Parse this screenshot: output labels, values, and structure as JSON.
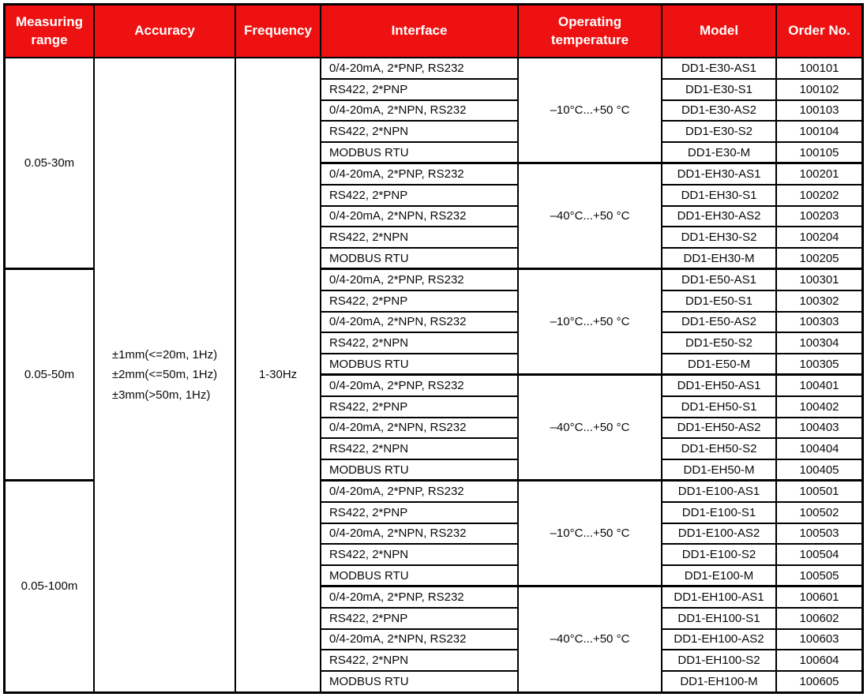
{
  "table": {
    "colors": {
      "header_bg": "#ee1111",
      "header_text": "#ffffff",
      "border": "#000000"
    },
    "headers": [
      "Measuring range",
      "Accuracy",
      "Frequency",
      "Interface",
      "Operating temperature",
      "Model",
      "Order No."
    ],
    "measuring_ranges": [
      {
        "label": "0.05-30m",
        "row_span": 10
      },
      {
        "label": "0.05-50m",
        "row_span": 10
      },
      {
        "label": "0.05-100m",
        "row_span": 10
      }
    ],
    "accuracy_lines": [
      "±1mm(<=20m, 1Hz)",
      "±2mm(<=50m, 1Hz)",
      "±3mm(>50m, 1Hz)"
    ],
    "frequency": "1-30Hz",
    "groups": [
      {
        "operating_temperature": "–10°C...+50 °C",
        "rows": [
          {
            "interface": "0/4-20mA, 2*PNP, RS232",
            "model": "DD1-E30-AS1",
            "order_no": "100101"
          },
          {
            "interface": "RS422, 2*PNP",
            "model": "DD1-E30-S1",
            "order_no": "100102"
          },
          {
            "interface": "0/4-20mA, 2*NPN, RS232",
            "model": "DD1-E30-AS2",
            "order_no": "100103"
          },
          {
            "interface": "RS422, 2*NPN",
            "model": "DD1-E30-S2",
            "order_no": "100104"
          },
          {
            "interface": "MODBUS RTU",
            "model": "DD1-E30-M",
            "order_no": "100105"
          }
        ]
      },
      {
        "operating_temperature": "–40°C...+50 °C",
        "rows": [
          {
            "interface": "0/4-20mA, 2*PNP, RS232",
            "model": "DD1-EH30-AS1",
            "order_no": "100201"
          },
          {
            "interface": "RS422, 2*PNP",
            "model": "DD1-EH30-S1",
            "order_no": "100202"
          },
          {
            "interface": "0/4-20mA, 2*NPN, RS232",
            "model": "DD1-EH30-AS2",
            "order_no": "100203"
          },
          {
            "interface": "RS422, 2*NPN",
            "model": "DD1-EH30-S2",
            "order_no": "100204"
          },
          {
            "interface": "MODBUS RTU",
            "model": "DD1-EH30-M",
            "order_no": "100205"
          }
        ]
      },
      {
        "operating_temperature": "–10°C...+50 °C",
        "rows": [
          {
            "interface": "0/4-20mA, 2*PNP, RS232",
            "model": "DD1-E50-AS1",
            "order_no": "100301"
          },
          {
            "interface": "RS422, 2*PNP",
            "model": "DD1-E50-S1",
            "order_no": "100302"
          },
          {
            "interface": "0/4-20mA, 2*NPN, RS232",
            "model": "DD1-E50-AS2",
            "order_no": "100303"
          },
          {
            "interface": "RS422, 2*NPN",
            "model": "DD1-E50-S2",
            "order_no": "100304"
          },
          {
            "interface": "MODBUS RTU",
            "model": "DD1-E50-M",
            "order_no": "100305"
          }
        ]
      },
      {
        "operating_temperature": "–40°C...+50 °C",
        "rows": [
          {
            "interface": "0/4-20mA, 2*PNP, RS232",
            "model": "DD1-EH50-AS1",
            "order_no": "100401"
          },
          {
            "interface": "RS422, 2*PNP",
            "model": "DD1-EH50-S1",
            "order_no": "100402"
          },
          {
            "interface": "0/4-20mA, 2*NPN, RS232",
            "model": "DD1-EH50-AS2",
            "order_no": "100403"
          },
          {
            "interface": "RS422, 2*NPN",
            "model": "DD1-EH50-S2",
            "order_no": "100404"
          },
          {
            "interface": "MODBUS RTU",
            "model": "DD1-EH50-M",
            "order_no": "100405"
          }
        ]
      },
      {
        "operating_temperature": "–10°C...+50 °C",
        "rows": [
          {
            "interface": "0/4-20mA, 2*PNP, RS232",
            "model": "DD1-E100-AS1",
            "order_no": "100501"
          },
          {
            "interface": "RS422, 2*PNP",
            "model": "DD1-E100-S1",
            "order_no": "100502"
          },
          {
            "interface": "0/4-20mA, 2*NPN, RS232",
            "model": "DD1-E100-AS2",
            "order_no": "100503"
          },
          {
            "interface": "RS422, 2*NPN",
            "model": "DD1-E100-S2",
            "order_no": "100504"
          },
          {
            "interface": "MODBUS RTU",
            "model": "DD1-E100-M",
            "order_no": "100505"
          }
        ]
      },
      {
        "operating_temperature": "–40°C...+50 °C",
        "rows": [
          {
            "interface": "0/4-20mA, 2*PNP, RS232",
            "model": "DD1-EH100-AS1",
            "order_no": "100601"
          },
          {
            "interface": "RS422, 2*PNP",
            "model": "DD1-EH100-S1",
            "order_no": "100602"
          },
          {
            "interface": "0/4-20mA, 2*NPN, RS232",
            "model": "DD1-EH100-AS2",
            "order_no": "100603"
          },
          {
            "interface": "RS422, 2*NPN",
            "model": "DD1-EH100-S2",
            "order_no": "100604"
          },
          {
            "interface": "MODBUS RTU",
            "model": "DD1-EH100-M",
            "order_no": "100605"
          }
        ]
      }
    ]
  }
}
